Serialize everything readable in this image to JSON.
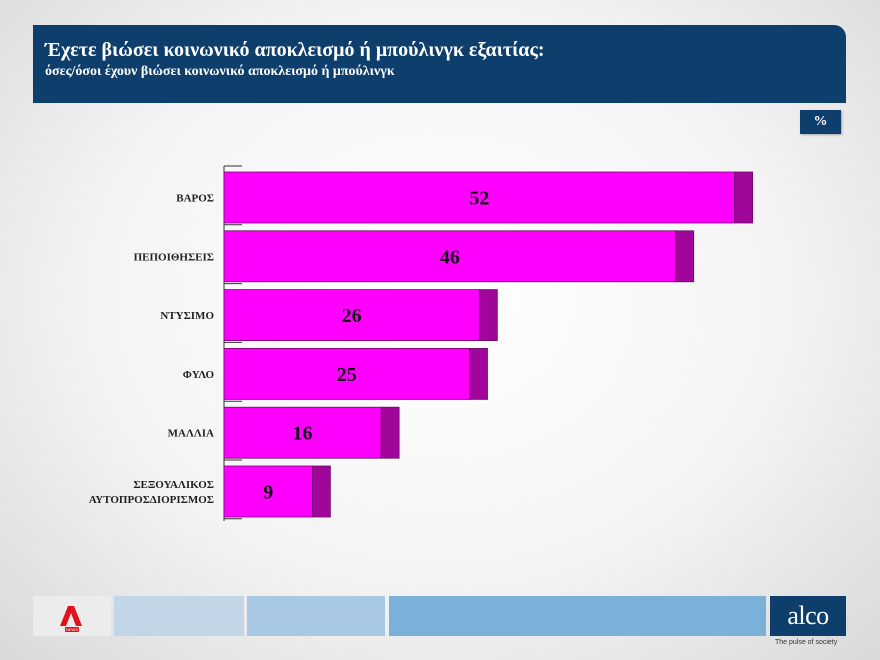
{
  "header": {
    "title": "Έχετε βιώσει κοινωνικό αποκλεισμό ή μπούλινγκ εξαιτίας:",
    "subtitle": "όσες/όσοι έχουν βιώσει κοινωνικό αποκλεισμό ή μπούλινγκ"
  },
  "unit_badge": "%",
  "chart_data": {
    "type": "bar",
    "orientation": "horizontal",
    "categories": [
      "ΒΑΡΟΣ",
      "ΠΕΠΟΙΘΗΣΕΙΣ",
      "ΝΤΥΣΙΜΟ",
      "ΦΥΛΟ",
      "ΜΑΛΛΙΑ",
      "ΣΕΞΟΥΑΛΙΚΟΣ ΑΥΤΟΠΡΟΣΔΙΟΡΙΣΜΟΣ"
    ],
    "category_lines": [
      [
        "ΒΑΡΟΣ"
      ],
      [
        "ΠΕΠΟΙΘΗΣΕΙΣ"
      ],
      [
        "ΝΤΥΣΙΜΟ"
      ],
      [
        "ΦΥΛΟ"
      ],
      [
        "ΜΑΛΛΙΑ"
      ],
      [
        "ΣΕΞΟΥΑΛΙΚΟΣ",
        "ΑΥΤΟΠΡΟΣΔΙΟΡΙΣΜΟΣ"
      ]
    ],
    "values": [
      52,
      46,
      26,
      25,
      16,
      9
    ],
    "colors": {
      "bar": "#ff00ff",
      "bar_side": "#a0069a",
      "axis": "#333333"
    },
    "xlim": [
      0,
      60
    ],
    "grid": false
  },
  "footer": {
    "brand_name": "alco",
    "tagline": "The pulse of society",
    "news_logo_text": "NEWS",
    "colors": [
      "#c3d6e8",
      "#a9c8e3",
      "#7bb0d9"
    ]
  }
}
